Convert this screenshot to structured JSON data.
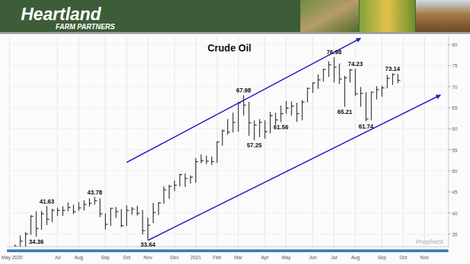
{
  "header": {
    "brand": "Heartland",
    "tagline": "FARM PARTNERS"
  },
  "watermark": "ProphetX",
  "chart_data": {
    "type": "ohlc",
    "title": "Crude Oil",
    "color": "#2b2b2b",
    "grid": true,
    "categories": [
      "May 2020",
      null,
      null,
      null,
      null,
      null,
      null,
      null,
      null,
      "Jul",
      null,
      null,
      null,
      "Aug",
      null,
      null,
      null,
      null,
      "Sep",
      null,
      null,
      null,
      "Oct",
      null,
      null,
      null,
      "Nov",
      null,
      null,
      null,
      null,
      "Dec",
      null,
      null,
      null,
      "2021",
      null,
      null,
      null,
      "Feb",
      null,
      null,
      null,
      "Mar",
      null,
      null,
      null,
      null,
      "Apr",
      null,
      null,
      null,
      "May",
      null,
      null,
      null,
      null,
      "Jun",
      null,
      null,
      null,
      "Jul",
      null,
      null,
      null,
      "Aug",
      null,
      null,
      null,
      null,
      "Sep",
      null,
      null,
      null,
      "Oct",
      null,
      null,
      null,
      "Nov",
      null,
      null,
      null,
      null
    ],
    "high": [
      31.0,
      32.5,
      34.7,
      35.5,
      39.5,
      40.4,
      40.5,
      41.63,
      41.0,
      41.3,
      41.6,
      42.5,
      42.0,
      42.6,
      43.0,
      43.5,
      43.78,
      43.5,
      39.9,
      41.2,
      41.4,
      40.9,
      41.8,
      41.4,
      41.7,
      40.7,
      38.9,
      42.4,
      42.6,
      46.3,
      46.7,
      47.7,
      49.3,
      49.4,
      48.9,
      53.0,
      53.9,
      53.6,
      53.4,
      57.0,
      59.8,
      62.3,
      63.8,
      66.4,
      67.98,
      66.4,
      62.0,
      62.3,
      62.0,
      64.0,
      63.8,
      65.5,
      66.6,
      66.5,
      66.2,
      66.8,
      69.8,
      71.0,
      72.9,
      74.3,
      76.0,
      76.98,
      75.5,
      72.6,
      74.2,
      74.23,
      69.9,
      68.7,
      68.8,
      70.1,
      70.2,
      72.8,
      73.14,
      73.0,
      null,
      null,
      null,
      null,
      null,
      null,
      null,
      null,
      null
    ],
    "low": [
      28.0,
      29.5,
      31.5,
      32.0,
      34.8,
      34.36,
      36.0,
      37.1,
      37.8,
      39.3,
      39.3,
      40.4,
      39.7,
      40.5,
      40.6,
      41.5,
      42.0,
      39.0,
      36.1,
      36.9,
      38.8,
      36.6,
      36.9,
      39.6,
      39.4,
      34.9,
      33.64,
      37.6,
      39.5,
      42.2,
      43.4,
      45.2,
      46.3,
      46.2,
      47.0,
      47.2,
      51.8,
      51.6,
      51.4,
      51.9,
      56.0,
      58.6,
      59.1,
      59.3,
      63.1,
      58.3,
      57.25,
      58.0,
      57.6,
      58.9,
      61.0,
      61.56,
      63.6,
      63.1,
      61.6,
      62.0,
      66.3,
      68.5,
      69.5,
      71.2,
      72.3,
      71.0,
      70.6,
      65.21,
      71.0,
      67.8,
      65.2,
      61.74,
      62.0,
      67.0,
      67.6,
      69.6,
      70.4,
      70.8,
      null,
      null,
      null,
      null,
      null,
      null,
      null,
      null,
      null
    ],
    "close": [
      30.0,
      32.0,
      33.3,
      35.0,
      39.2,
      36.3,
      39.8,
      38.5,
      40.6,
      40.6,
      40.6,
      41.3,
      40.3,
      41.2,
      42.0,
      42.3,
      42.9,
      39.8,
      37.3,
      41.1,
      40.3,
      37.0,
      40.6,
      40.9,
      39.9,
      35.8,
      37.1,
      40.1,
      42.4,
      45.5,
      46.3,
      46.6,
      49.1,
      48.2,
      48.5,
      52.2,
      52.4,
      52.3,
      52.2,
      56.9,
      59.5,
      59.2,
      61.5,
      66.1,
      65.6,
      61.4,
      60.9,
      61.5,
      59.3,
      63.1,
      62.1,
      63.6,
      64.9,
      65.4,
      63.6,
      66.3,
      69.6,
      70.9,
      71.6,
      74.1,
      75.2,
      74.6,
      71.8,
      72.1,
      73.95,
      68.3,
      68.4,
      62.3,
      68.7,
      69.3,
      69.7,
      71.97,
      72.9,
      71.5,
      null,
      null,
      null,
      null,
      null,
      null,
      null,
      null,
      null
    ],
    "ylim": [
      32,
      82
    ],
    "yticks": [
      35,
      40,
      45,
      50,
      55,
      60,
      65,
      70,
      75,
      80
    ],
    "annotations": [
      41.63,
      34.36,
      43.78,
      33.64,
      67.98,
      57.25,
      61.56,
      76.98,
      65.21,
      74.23,
      61.74,
      73.14
    ],
    "trend_lines": [
      {
        "x": [
          22,
          66
        ],
        "y": [
          52,
          81.5
        ],
        "color": "#1c1cc8"
      },
      {
        "x": [
          26,
          81
        ],
        "y": [
          33.5,
          68
        ],
        "color": "#1c1cc8"
      }
    ]
  }
}
